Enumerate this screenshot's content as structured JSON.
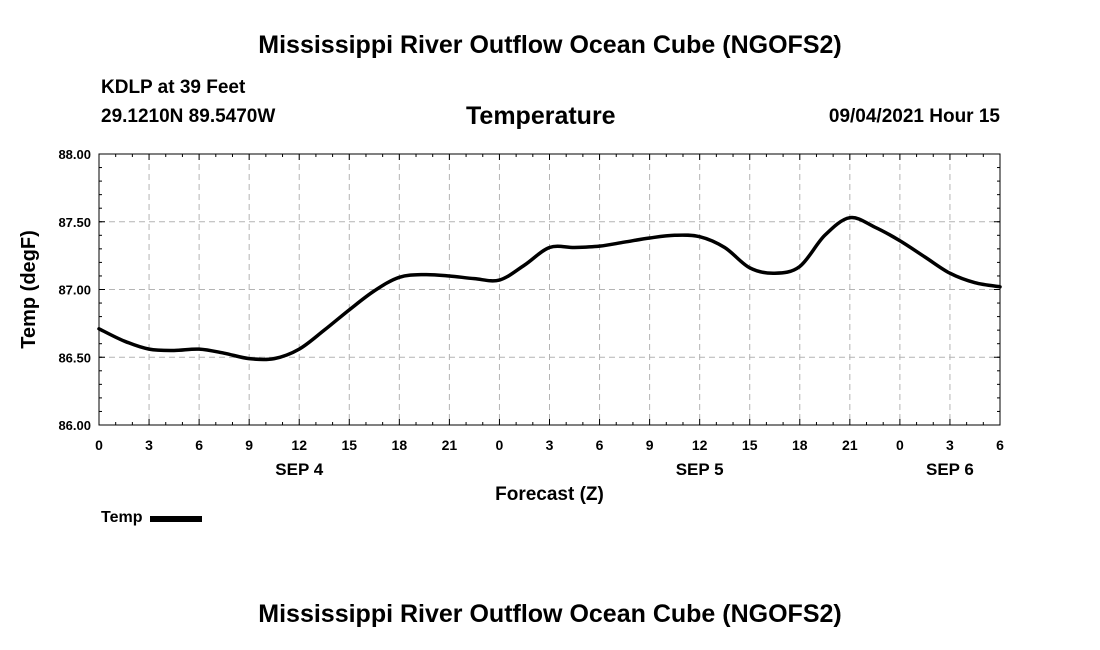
{
  "header": {
    "title": "Mississippi River Outflow Ocean Cube (NGOFS2)",
    "station": "KDLP at 39 Feet",
    "coordinates": "29.1210N  89.5470W",
    "subtitle": "Temperature",
    "datetime": "09/04/2021 Hour 15"
  },
  "footer": {
    "title": "Mississippi River Outflow Ocean Cube (NGOFS2)"
  },
  "legend": {
    "label": "Temp",
    "color": "#000000"
  },
  "chart_data": {
    "type": "line",
    "title": "Temperature",
    "xlabel": "Forecast (Z)",
    "ylabel": "Temp (degF)",
    "xlim": [
      0,
      54
    ],
    "ylim": [
      86.0,
      88.0
    ],
    "grid": true,
    "legend_position": "bottom-left",
    "x_ticks": [
      0,
      3,
      6,
      9,
      12,
      15,
      18,
      21,
      24,
      27,
      30,
      33,
      36,
      39,
      42,
      45,
      48,
      51,
      54
    ],
    "x_tick_labels": [
      "0",
      "3",
      "6",
      "9",
      "12",
      "15",
      "18",
      "21",
      "0",
      "3",
      "6",
      "9",
      "12",
      "15",
      "18",
      "21",
      "0",
      "3",
      "6"
    ],
    "y_ticks": [
      86.0,
      86.5,
      87.0,
      87.5,
      88.0
    ],
    "y_tick_labels": [
      "86.00",
      "86.50",
      "87.00",
      "87.50",
      "88.00"
    ],
    "day_labels": [
      {
        "x": 12,
        "label": "SEP 4"
      },
      {
        "x": 36,
        "label": "SEP 5"
      },
      {
        "x": 51,
        "label": "SEP 6"
      }
    ],
    "series": [
      {
        "name": "Temp",
        "color": "#000000",
        "x": [
          0,
          1.5,
          3,
          4.5,
          6,
          7.5,
          9,
          10.5,
          12,
          13.5,
          15,
          16.5,
          18,
          19.5,
          21,
          22.5,
          24,
          25.5,
          27,
          28.5,
          30,
          31.5,
          33,
          34.5,
          36,
          37.5,
          39,
          40.5,
          42,
          43.5,
          45,
          46.5,
          48,
          49.5,
          51,
          52.5,
          54
        ],
        "values": [
          86.71,
          86.62,
          86.56,
          86.55,
          86.56,
          86.53,
          86.49,
          86.49,
          86.56,
          86.7,
          86.85,
          86.99,
          87.09,
          87.11,
          87.1,
          87.08,
          87.07,
          87.18,
          87.31,
          87.31,
          87.32,
          87.35,
          87.38,
          87.4,
          87.39,
          87.31,
          87.16,
          87.12,
          87.17,
          87.4,
          87.53,
          87.46,
          87.36,
          87.24,
          87.12,
          87.05,
          87.02
        ]
      }
    ]
  }
}
